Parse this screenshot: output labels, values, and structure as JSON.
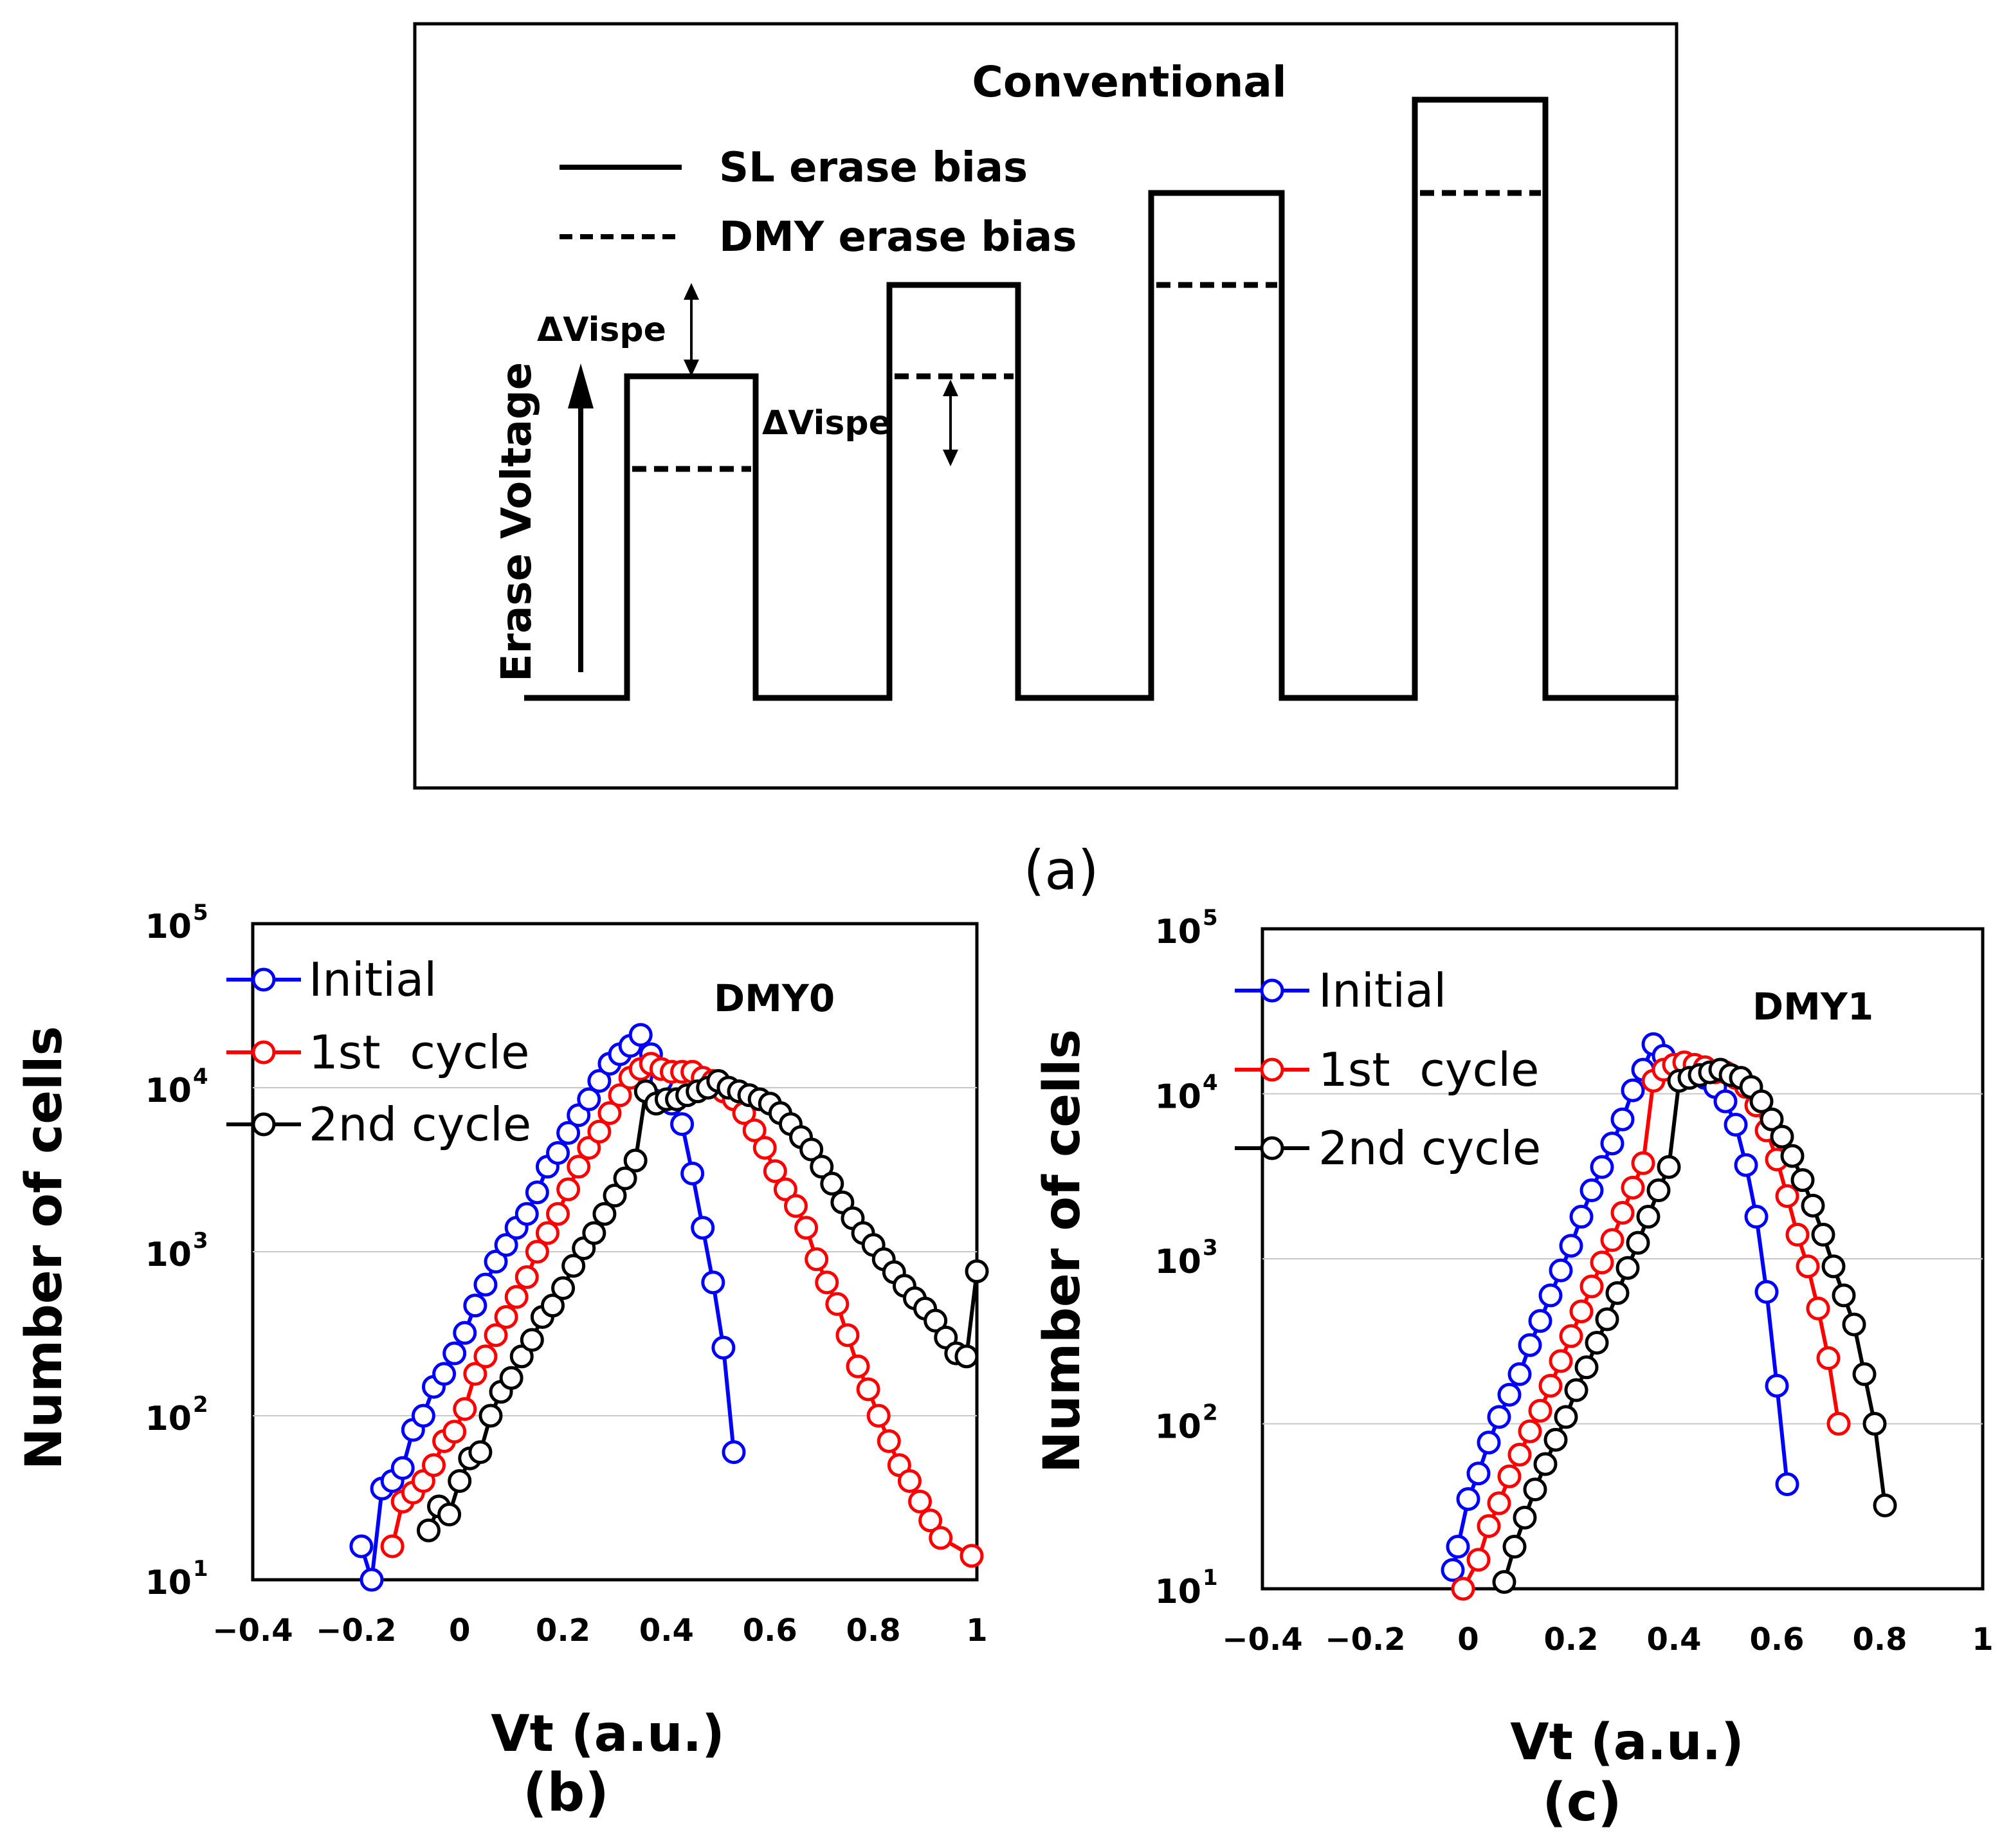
{
  "panel_a": {
    "title": "Conventional",
    "legend": {
      "solid": "SL erase bias",
      "dashed": "DMY erase bias"
    },
    "ylabel": "Erase Voltage",
    "delta_label_1": "ΔVispe",
    "delta_label_2": "ΔVispe",
    "caption": "(a)",
    "pulses": [
      {
        "sl_level": 1,
        "dmy_level": 0.72
      },
      {
        "sl_level": 1.28,
        "dmy_level": 1.0
      },
      {
        "sl_level": 1.57,
        "dmy_level": 1.28
      },
      {
        "sl_level": 1.85,
        "dmy_level": 1.57
      }
    ]
  },
  "chart_data": [
    {
      "type": "line",
      "caption": "(b)",
      "annotation": "DMY0",
      "xlabel": "Vt (a.u.)",
      "ylabel": "Number of cells",
      "xlim": [
        -0.4,
        1.0
      ],
      "xticks": [
        "−0.4",
        "−0.2",
        "0",
        "0.2",
        "0.4",
        "0.6",
        "0.8",
        "1"
      ],
      "ylim": [
        10,
        100000
      ],
      "yscale": "log",
      "ytick_bases": [
        "10",
        "10",
        "10",
        "10",
        "10"
      ],
      "ytick_exps": [
        "1",
        "2",
        "3",
        "4",
        "5"
      ],
      "legend_position": "top-left",
      "series": [
        {
          "name": "Initial",
          "color": "#0000ff",
          "x": [
            -0.19,
            -0.17,
            -0.15,
            -0.13,
            -0.11,
            -0.09,
            -0.07,
            -0.05,
            -0.03,
            -0.01,
            0.01,
            0.03,
            0.05,
            0.07,
            0.09,
            0.11,
            0.13,
            0.15,
            0.17,
            0.19,
            0.21,
            0.23,
            0.25,
            0.27,
            0.29,
            0.31,
            0.33,
            0.35,
            0.37,
            0.39,
            0.41,
            0.43,
            0.45,
            0.47,
            0.49,
            0.51,
            0.53
          ],
          "y": [
            16,
            10,
            36,
            40,
            48,
            82,
            100,
            150,
            180,
            240,
            320,
            470,
            630,
            870,
            1100,
            1400,
            1700,
            2300,
            3300,
            4000,
            5300,
            6800,
            8500,
            11000,
            14000,
            16000,
            18000,
            21000,
            16000,
            11000,
            8000,
            6000,
            3000,
            1400,
            650,
            260,
            60
          ]
        },
        {
          "name": "1st  cycle",
          "color": "#ff0000",
          "x": [
            -0.13,
            -0.11,
            -0.09,
            -0.07,
            -0.05,
            -0.03,
            -0.01,
            0.01,
            0.03,
            0.05,
            0.07,
            0.09,
            0.11,
            0.13,
            0.15,
            0.17,
            0.19,
            0.21,
            0.23,
            0.25,
            0.27,
            0.29,
            0.31,
            0.33,
            0.35,
            0.37,
            0.39,
            0.41,
            0.43,
            0.45,
            0.47,
            0.49,
            0.51,
            0.53,
            0.55,
            0.57,
            0.59,
            0.61,
            0.63,
            0.65,
            0.67,
            0.69,
            0.71,
            0.73,
            0.75,
            0.77,
            0.79,
            0.81,
            0.83,
            0.85,
            0.87,
            0.89,
            0.91,
            0.93,
            0.99
          ],
          "y": [
            16,
            30,
            34,
            40,
            50,
            70,
            80,
            110,
            180,
            230,
            310,
            400,
            530,
            700,
            1000,
            1300,
            1700,
            2400,
            3300,
            4300,
            5400,
            7000,
            9000,
            11500,
            13000,
            14000,
            13000,
            12500,
            12500,
            12500,
            11500,
            11000,
            9500,
            8500,
            7000,
            5500,
            4300,
            3100,
            2400,
            1900,
            1400,
            900,
            650,
            480,
            310,
            200,
            145,
            100,
            70,
            50,
            40,
            30,
            23,
            18,
            14
          ]
        },
        {
          "name": "2nd cycle",
          "color": "#000000",
          "x": [
            -0.06,
            -0.04,
            -0.02,
            0.0,
            0.02,
            0.04,
            0.06,
            0.08,
            0.1,
            0.12,
            0.14,
            0.16,
            0.18,
            0.2,
            0.22,
            0.24,
            0.26,
            0.28,
            0.3,
            0.32,
            0.34,
            0.36,
            0.38,
            0.4,
            0.42,
            0.44,
            0.46,
            0.48,
            0.5,
            0.52,
            0.54,
            0.56,
            0.58,
            0.6,
            0.62,
            0.64,
            0.66,
            0.68,
            0.7,
            0.72,
            0.74,
            0.76,
            0.78,
            0.8,
            0.82,
            0.84,
            0.86,
            0.88,
            0.9,
            0.92,
            0.94,
            0.96,
            0.98,
            1.0
          ],
          "y": [
            20,
            28,
            25,
            40,
            55,
            60,
            100,
            140,
            170,
            230,
            290,
            400,
            470,
            600,
            820,
            1050,
            1300,
            1700,
            2200,
            2800,
            3600,
            9500,
            8000,
            8500,
            8500,
            9000,
            9500,
            10000,
            11000,
            10000,
            9500,
            9000,
            8500,
            8000,
            7000,
            6000,
            5000,
            4200,
            3300,
            2600,
            2000,
            1600,
            1300,
            1100,
            900,
            750,
            620,
            520,
            450,
            380,
            300,
            240,
            230,
            760
          ]
        }
      ]
    },
    {
      "type": "line",
      "caption": "(c)",
      "annotation": "DMY1",
      "xlabel": "Vt (a.u.)",
      "ylabel": "Number of cells",
      "xlim": [
        -0.4,
        1.0
      ],
      "xticks": [
        "−0.4",
        "−0.2",
        "0",
        "0.2",
        "0.4",
        "0.6",
        "0.8",
        "1"
      ],
      "ylim": [
        10,
        100000
      ],
      "yscale": "log",
      "ytick_bases": [
        "10",
        "10",
        "10",
        "10",
        "10"
      ],
      "ytick_exps": [
        "1",
        "2",
        "3",
        "4",
        "5"
      ],
      "legend_position": "top-left",
      "series": [
        {
          "name": "Initial",
          "color": "#0000ff",
          "x": [
            -0.03,
            -0.02,
            0.0,
            0.02,
            0.04,
            0.06,
            0.08,
            0.1,
            0.12,
            0.14,
            0.16,
            0.18,
            0.2,
            0.22,
            0.24,
            0.26,
            0.28,
            0.3,
            0.32,
            0.34,
            0.36,
            0.38,
            0.4,
            0.42,
            0.44,
            0.46,
            0.48,
            0.5,
            0.52,
            0.54,
            0.56,
            0.58,
            0.6,
            0.62
          ],
          "y": [
            13,
            18,
            35,
            50,
            77,
            110,
            150,
            200,
            300,
            420,
            600,
            850,
            1200,
            1800,
            2600,
            3600,
            5000,
            7000,
            10500,
            14000,
            20000,
            17000,
            15000,
            14000,
            13500,
            12500,
            11000,
            9000,
            6500,
            3700,
            1800,
            630,
            170,
            43
          ]
        },
        {
          "name": "1st  cycle",
          "color": "#ff0000",
          "x": [
            -0.01,
            0.02,
            0.04,
            0.06,
            0.08,
            0.1,
            0.12,
            0.14,
            0.16,
            0.18,
            0.2,
            0.22,
            0.24,
            0.26,
            0.28,
            0.3,
            0.32,
            0.34,
            0.36,
            0.38,
            0.4,
            0.42,
            0.44,
            0.46,
            0.48,
            0.5,
            0.52,
            0.54,
            0.56,
            0.58,
            0.6,
            0.62,
            0.64,
            0.66,
            0.68,
            0.7,
            0.72
          ],
          "y": [
            10,
            15,
            24,
            33,
            48,
            65,
            90,
            120,
            170,
            240,
            340,
            480,
            680,
            950,
            1300,
            1900,
            2700,
            3800,
            12000,
            14000,
            15000,
            15500,
            15000,
            14500,
            13500,
            13500,
            12500,
            11000,
            8500,
            6000,
            4000,
            2400,
            1400,
            900,
            500,
            250,
            100
          ]
        },
        {
          "name": "2nd cycle",
          "color": "#000000",
          "x": [
            0.07,
            0.09,
            0.11,
            0.13,
            0.15,
            0.17,
            0.19,
            0.21,
            0.23,
            0.25,
            0.27,
            0.29,
            0.31,
            0.33,
            0.35,
            0.37,
            0.39,
            0.41,
            0.43,
            0.45,
            0.47,
            0.49,
            0.51,
            0.53,
            0.55,
            0.57,
            0.59,
            0.61,
            0.63,
            0.65,
            0.67,
            0.69,
            0.71,
            0.73,
            0.75,
            0.77,
            0.79,
            0.81
          ],
          "y": [
            11,
            18,
            27,
            40,
            57,
            80,
            110,
            160,
            220,
            310,
            430,
            620,
            880,
            1250,
            1800,
            2600,
            3600,
            12000,
            12500,
            13000,
            13500,
            14000,
            13000,
            12500,
            11000,
            9000,
            7000,
            5500,
            4200,
            3000,
            2100,
            1400,
            900,
            600,
            400,
            200,
            100,
            32
          ]
        }
      ]
    }
  ]
}
